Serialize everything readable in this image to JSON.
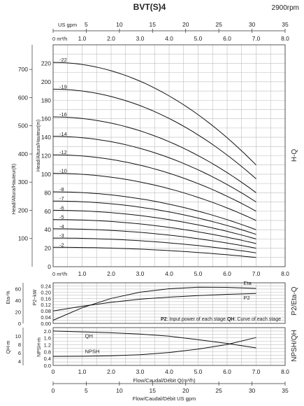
{
  "chart_data": {
    "type": "line",
    "title": "BVT(S)4",
    "speed": "2900rpm",
    "us_gpm_top_label": "US gpm",
    "us_gpm_ticks": [
      "0",
      "5",
      "10",
      "15",
      "20",
      "25",
      "30",
      "35"
    ],
    "flow_ticks": [
      "0",
      "1.0",
      "2.0",
      "3.0",
      "4.0",
      "5.0",
      "6.0",
      "7.0",
      "8.0"
    ],
    "flow_unit_label": "0 m³/h",
    "head_xrange": [
      0,
      7
    ],
    "hq_panel": {
      "side_label": "H-Q",
      "ylabel_m": "Head/Altura/Hauteur(m)",
      "ylabel_ft": "Head/Altura/Hauteur(ft)",
      "ylim_m": [
        0,
        240
      ],
      "yticks_m": [
        "0",
        "20",
        "40",
        "60",
        "80",
        "100",
        "120",
        "140",
        "160",
        "180",
        "200",
        "220"
      ],
      "yticks_ft": [
        "100",
        "200",
        "300",
        "400",
        "500",
        "600",
        "700"
      ],
      "series": [
        {
          "name": "-22",
          "x": [
            0,
            7
          ],
          "y": [
            221,
            110
          ]
        },
        {
          "name": "-19",
          "x": [
            0,
            7
          ],
          "y": [
            192,
            95
          ]
        },
        {
          "name": "-16",
          "x": [
            0,
            7
          ],
          "y": [
            162,
            80
          ]
        },
        {
          "name": "-14",
          "x": [
            0,
            7
          ],
          "y": [
            141,
            70
          ]
        },
        {
          "name": "-12",
          "x": [
            0,
            7
          ],
          "y": [
            121,
            60
          ]
        },
        {
          "name": "-10",
          "x": [
            0,
            7
          ],
          "y": [
            101,
            50
          ]
        },
        {
          "name": "-8",
          "x": [
            0,
            7
          ],
          "y": [
            81,
            40
          ]
        },
        {
          "name": "-7",
          "x": [
            0,
            7
          ],
          "y": [
            71,
            35
          ]
        },
        {
          "name": "-6",
          "x": [
            0,
            7
          ],
          "y": [
            61,
            30
          ]
        },
        {
          "name": "-5",
          "x": [
            0,
            7
          ],
          "y": [
            51,
            25
          ]
        },
        {
          "name": "-4",
          "x": [
            0,
            7
          ],
          "y": [
            41,
            20
          ]
        },
        {
          "name": "-3",
          "x": [
            0,
            7
          ],
          "y": [
            31,
            15
          ]
        },
        {
          "name": "-2",
          "x": [
            0,
            7
          ],
          "y": [
            21,
            10
          ]
        }
      ]
    },
    "power_panel": {
      "side_label": "P2/Eta-Q",
      "ylabel_kw": "P2~kW",
      "ylabel_eta": "Eta-%",
      "ylim": [
        0,
        0.26
      ],
      "yticks": [
        "0.00",
        "0.04",
        "0.08",
        "0.12",
        "0.16",
        "0.20",
        "0.24"
      ],
      "yticks_eta": [
        "0",
        "20",
        "40",
        "60"
      ],
      "note_p2_key": "P2",
      "note_p2_text": ": Input power of each stage",
      "note_qh_key": "QH",
      "note_qh_text": ": Curve of each stage",
      "series": [
        {
          "name": "Eta",
          "x": [
            0,
            1,
            2,
            3,
            4,
            5,
            6,
            7
          ],
          "y": [
            0.02,
            0.1,
            0.16,
            0.2,
            0.222,
            0.232,
            0.231,
            0.224
          ]
        },
        {
          "name": "P2",
          "x": [
            0,
            1,
            2,
            3,
            4,
            5,
            6,
            7
          ],
          "y": [
            0.08,
            0.11,
            0.135,
            0.155,
            0.168,
            0.178,
            0.186,
            0.192
          ]
        }
      ]
    },
    "npsh_panel": {
      "side_label": "NPSH/QH",
      "ylabel_npsh": "NPSH-m",
      "ylabel_qh": "QH-m",
      "ylim": [
        0,
        2.2
      ],
      "yticks": [
        "0.0",
        "0.4",
        "0.8",
        "1.2",
        "1.6",
        "2.0"
      ],
      "yticks_qh": [
        "4",
        "6",
        "8",
        "10"
      ],
      "series": [
        {
          "name": "QH",
          "x": [
            0,
            1,
            2,
            3,
            4,
            5,
            6,
            7
          ],
          "y": [
            2.0,
            1.95,
            1.9,
            1.82,
            1.7,
            1.5,
            1.28,
            1.02
          ]
        },
        {
          "name": "NPSH",
          "x": [
            0,
            1,
            2,
            3,
            4,
            5,
            6,
            7
          ],
          "y": [
            0.52,
            0.53,
            0.56,
            0.62,
            0.75,
            0.95,
            1.22,
            1.62
          ]
        }
      ]
    },
    "xlabel_main": "Flow/Caudal/Débit Q(m³/h)",
    "xlabel_gpm": "Flow/Caudal/Débit  US gpm"
  }
}
